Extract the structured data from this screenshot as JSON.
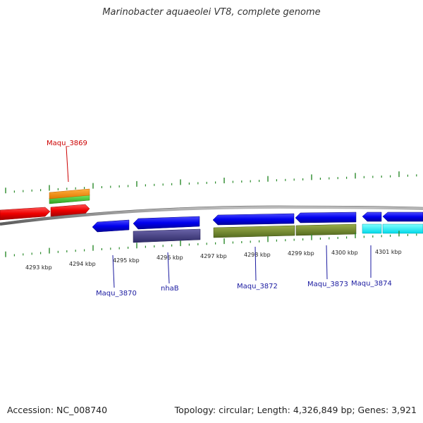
{
  "title": "Marinobacter aquaeolei VT8, complete genome",
  "footer": {
    "accession": "Accession: NC_008740",
    "summary": "Topology: circular; Length: 4,326,849 bp; Genes: 3,921"
  },
  "colors": {
    "backbone": "#8c8c8c",
    "tick": "#2a8a2a",
    "label_forward": "#cc0000",
    "label_reverse": "#1a1aa0"
  },
  "scale_labels": [
    "4293 kbp",
    "4294 kbp",
    "4295 kbp",
    "4296 kbp",
    "4297 kbp",
    "4298 kbp",
    "4299 kbp",
    "4300 kbp",
    "4301 kbp"
  ],
  "gene_labels": [
    {
      "text": "Maqu_3869",
      "color": "#cc0000"
    },
    {
      "text": "Maqu_3870",
      "color": "#1a1aa0"
    },
    {
      "text": "nhaB",
      "color": "#1a1aa0"
    },
    {
      "text": "Maqu_3872",
      "color": "#1a1aa0"
    },
    {
      "text": "Maqu_3873",
      "color": "#1a1aa0"
    },
    {
      "text": "Maqu_3874",
      "color": "#1a1aa0"
    }
  ]
}
